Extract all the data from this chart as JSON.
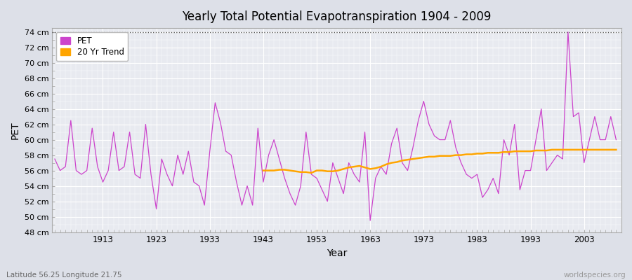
{
  "title": "Yearly Total Potential Evapotranspiration 1904 - 2009",
  "xlabel": "Year",
  "ylabel": "PET",
  "subtitle": "Latitude 56.25 Longitude 21.75",
  "watermark": "worldspecies.org",
  "ylim": [
    48,
    74.5
  ],
  "xlim": [
    1903.5,
    2010
  ],
  "yticks": [
    48,
    50,
    52,
    54,
    56,
    58,
    60,
    62,
    64,
    66,
    68,
    70,
    72,
    74
  ],
  "ytick_labels": [
    "48 cm",
    "50 cm",
    "52 cm",
    "54 cm",
    "56 cm",
    "58 cm",
    "60 cm",
    "62 cm",
    "64 cm",
    "66 cm",
    "68 cm",
    "70 cm",
    "72 cm",
    "74 cm"
  ],
  "xticks": [
    1913,
    1923,
    1933,
    1943,
    1953,
    1963,
    1973,
    1983,
    1993,
    2003
  ],
  "pet_color": "#CC44CC",
  "trend_color": "#FFA500",
  "bg_color": "#E0E0E8",
  "plot_bg_color": "#E8E8F0",
  "dashed_line_y": 74,
  "pet_years": [
    1904,
    1905,
    1906,
    1907,
    1908,
    1909,
    1910,
    1911,
    1912,
    1913,
    1914,
    1915,
    1916,
    1917,
    1918,
    1919,
    1920,
    1921,
    1922,
    1923,
    1924,
    1925,
    1926,
    1927,
    1928,
    1929,
    1930,
    1931,
    1932,
    1933,
    1934,
    1935,
    1936,
    1937,
    1938,
    1939,
    1940,
    1941,
    1942,
    1943,
    1944,
    1945,
    1946,
    1947,
    1948,
    1949,
    1950,
    1951,
    1952,
    1953,
    1954,
    1955,
    1956,
    1957,
    1958,
    1959,
    1960,
    1961,
    1962,
    1963,
    1964,
    1965,
    1966,
    1967,
    1968,
    1969,
    1970,
    1971,
    1972,
    1973,
    1974,
    1975,
    1976,
    1977,
    1978,
    1979,
    1980,
    1981,
    1982,
    1983,
    1984,
    1985,
    1986,
    1987,
    1988,
    1989,
    1990,
    1991,
    1992,
    1993,
    1994,
    1995,
    1996,
    1997,
    1998,
    1999,
    2000,
    2001,
    2002,
    2003,
    2004,
    2005,
    2006,
    2007,
    2008,
    2009
  ],
  "pet_values": [
    57.5,
    56.0,
    56.5,
    62.5,
    56.0,
    55.5,
    56.0,
    61.5,
    56.5,
    54.5,
    56.0,
    61.0,
    56.0,
    56.5,
    61.0,
    55.5,
    55.0,
    62.0,
    55.5,
    51.0,
    57.5,
    55.5,
    54.0,
    58.0,
    55.5,
    58.5,
    54.5,
    54.0,
    51.5,
    58.5,
    64.8,
    62.2,
    58.5,
    58.0,
    54.5,
    51.5,
    54.0,
    51.5,
    61.5,
    54.5,
    58.0,
    60.0,
    57.5,
    55.0,
    53.0,
    51.5,
    54.0,
    61.0,
    55.5,
    55.0,
    53.5,
    52.0,
    57.0,
    55.0,
    53.0,
    57.0,
    55.5,
    54.5,
    61.0,
    49.5,
    55.0,
    56.5,
    55.5,
    59.5,
    61.5,
    57.0,
    56.0,
    59.0,
    62.5,
    65.0,
    62.0,
    60.5,
    60.0,
    60.0,
    62.5,
    59.0,
    57.0,
    55.5,
    55.0,
    55.5,
    52.5,
    53.5,
    55.0,
    53.0,
    60.0,
    58.0,
    62.0,
    53.5,
    56.0,
    56.0,
    60.0,
    64.0,
    56.0,
    57.0,
    58.0,
    57.5,
    74.0,
    63.0,
    63.5,
    57.0,
    60.0,
    63.0,
    60.0,
    60.0,
    63.0,
    60.0
  ],
  "trend_years": [
    1943,
    1944,
    1945,
    1946,
    1947,
    1948,
    1949,
    1950,
    1951,
    1952,
    1953,
    1954,
    1955,
    1956,
    1957,
    1958,
    1959,
    1960,
    1961,
    1962,
    1963,
    1964,
    1965,
    1966,
    1967,
    1968,
    1969,
    1970,
    1971,
    1972,
    1973,
    1974,
    1975,
    1976,
    1977,
    1978,
    1979,
    1980,
    1981,
    1982,
    1983,
    1984,
    1985,
    1986,
    1987,
    1988,
    1989,
    1990,
    1991,
    1992,
    1993,
    1994,
    1995,
    1996,
    1997,
    1998,
    1999,
    2000,
    2001,
    2002,
    2003,
    2004,
    2005,
    2006,
    2007,
    2008,
    2009
  ],
  "trend_values": [
    56.0,
    56.0,
    56.0,
    56.1,
    56.1,
    56.0,
    55.9,
    55.8,
    55.8,
    55.7,
    56.0,
    56.0,
    55.9,
    55.9,
    56.0,
    56.2,
    56.4,
    56.5,
    56.6,
    56.4,
    56.2,
    56.3,
    56.5,
    56.8,
    57.0,
    57.1,
    57.3,
    57.4,
    57.5,
    57.6,
    57.7,
    57.8,
    57.8,
    57.9,
    57.9,
    57.9,
    58.0,
    58.0,
    58.1,
    58.1,
    58.2,
    58.2,
    58.3,
    58.3,
    58.3,
    58.4,
    58.4,
    58.5,
    58.5,
    58.5,
    58.5,
    58.6,
    58.6,
    58.6,
    58.7,
    58.7,
    58.7,
    58.7,
    58.7,
    58.7,
    58.7,
    58.7,
    58.7,
    58.7,
    58.7,
    58.7,
    58.7
  ]
}
